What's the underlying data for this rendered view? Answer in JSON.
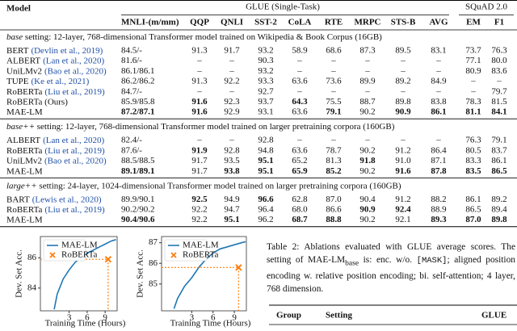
{
  "table": {
    "header_model": "Model",
    "group_glue": "GLUE (Single-Task)",
    "group_squad": "SQuAD 2.0",
    "columns": [
      "MNLI-(m/mm)",
      "QQP",
      "QNLI",
      "SST-2",
      "CoLA",
      "RTE",
      "MRPC",
      "STS-B",
      "AVG",
      "EM",
      "F1"
    ],
    "sections": [
      {
        "setting": "base",
        "description": " setting: 12-layer, 768-dimensional Transformer model trained on Wikipedia & Book Corpus (16GB)",
        "rows": [
          {
            "model": "BERT",
            "citation": "(Devlin et al., 2019)",
            "values": [
              "84.5/-",
              "91.3",
              "91.7",
              "93.2",
              "58.9",
              "68.6",
              "87.3",
              "89.5",
              "83.1",
              "73.7",
              "76.3"
            ],
            "bold": []
          },
          {
            "model": "ALBERT",
            "citation": "(Lan et al., 2020)",
            "values": [
              "81.6/-",
              "–",
              "–",
              "90.3",
              "–",
              "–",
              "–",
              "–",
              "–",
              "77.1",
              "80.0"
            ],
            "bold": []
          },
          {
            "model": "UniLMv2",
            "citation": "(Bao et al., 2020)",
            "values": [
              "86.1/86.1",
              "–",
              "–",
              "93.2",
              "–",
              "–",
              "–",
              "–",
              "–",
              "80.9",
              "83.6"
            ],
            "bold": []
          },
          {
            "model": "TUPE",
            "citation": "(Ke et al., 2021)",
            "values": [
              "86.2/86.2",
              "91.3",
              "92.2",
              "93.3",
              "63.6",
              "73.6",
              "89.9",
              "89.2",
              "84.9",
              "–",
              "–"
            ],
            "bold": []
          },
          {
            "model": "RoBERTa",
            "citation": "(Liu et al., 2019)",
            "values": [
              "84.7/-",
              "–",
              "–",
              "92.7",
              "–",
              "–",
              "–",
              "–",
              "–",
              "–",
              "79.7"
            ],
            "bold": []
          },
          {
            "model": "RoBERTa (Ours)",
            "values": [
              "85.9/85.8",
              "91.6",
              "92.3",
              "93.7",
              "64.3",
              "75.5",
              "88.7",
              "89.8",
              "83.8",
              "78.3",
              "81.5"
            ],
            "bold": [
              1,
              4
            ]
          },
          {
            "model": "MAE-LM",
            "values": [
              "87.2/87.1",
              "91.6",
              "92.9",
              "93.1",
              "63.6",
              "79.1",
              "90.2",
              "90.9",
              "86.1",
              "81.1",
              "84.1"
            ],
            "bold": [
              0,
              1,
              5,
              7,
              8,
              9,
              10
            ]
          }
        ]
      },
      {
        "setting": "base++",
        "description": " setting: 12-layer, 768-dimensional Transformer model trained on larger pretraining corpora (160GB)",
        "rows": [
          {
            "model": "ALBERT",
            "citation": "(Lan et al., 2020)",
            "values": [
              "82.4/-",
              "–",
              "–",
              "92.8",
              "–",
              "–",
              "–",
              "–",
              "–",
              "76.3",
              "79.1"
            ],
            "bold": []
          },
          {
            "model": "RoBERTa",
            "citation": "(Liu et al., 2019)",
            "values": [
              "87.6/-",
              "91.9",
              "92.8",
              "94.8",
              "63.6",
              "78.7",
              "90.2",
              "91.2",
              "86.4",
              "80.5",
              "83.7"
            ],
            "bold": [
              1
            ]
          },
          {
            "model": "UniLMv2",
            "citation": "(Bao et al., 2020)",
            "values": [
              "88.5/88.5",
              "91.7",
              "93.5",
              "95.1",
              "65.2",
              "81.3",
              "91.8",
              "91.0",
              "87.1",
              "83.3",
              "86.1"
            ],
            "bold": [
              3,
              6
            ]
          },
          {
            "model": "MAE-LM",
            "values": [
              "89.1/89.1",
              "91.7",
              "93.8",
              "95.1",
              "65.9",
              "85.2",
              "90.2",
              "91.6",
              "87.8",
              "83.5",
              "86.5"
            ],
            "bold": [
              0,
              2,
              3,
              4,
              5,
              7,
              8,
              9,
              10
            ]
          }
        ]
      },
      {
        "setting": "large++",
        "description": " setting: 24-layer, 1024-dimensional Transformer model trained on larger pretraining corpora (160GB)",
        "rows": [
          {
            "model": "BART",
            "citation": "(Lewis et al., 2020)",
            "values": [
              "89.9/90.1",
              "92.5",
              "94.9",
              "96.6",
              "62.8",
              "87.0",
              "90.4",
              "91.2",
              "88.2",
              "86.1",
              "89.2"
            ],
            "bold": [
              1,
              3
            ]
          },
          {
            "model": "RoBERTa",
            "citation": "(Liu et al., 2019)",
            "values": [
              "90.2/90.2",
              "92.2",
              "94.7",
              "96.4",
              "68.0",
              "86.6",
              "90.9",
              "92.4",
              "88.9",
              "86.5",
              "89.4"
            ],
            "bold": [
              6,
              7
            ]
          },
          {
            "model": "MAE-LM",
            "values": [
              "90.4/90.6",
              "92.2",
              "95.1",
              "96.2",
              "68.7",
              "88.8",
              "90.2",
              "92.1",
              "89.3",
              "87.0",
              "89.8"
            ],
            "bold": [
              0,
              2,
              4,
              5,
              8,
              9,
              10
            ]
          }
        ]
      }
    ]
  },
  "chart_data": [
    {
      "type": "line",
      "xlabel": "Training Time (Hours)",
      "ylabel": "Dev. Set Acc.",
      "xlim": [
        -1.8,
        11
      ],
      "ylim": [
        82.5,
        87.4
      ],
      "xticks": [
        3,
        6,
        9
      ],
      "yticks": [
        84,
        86
      ],
      "legend": "upper left",
      "series": [
        {
          "name": "MAE-LM",
          "color": "#1f77b4",
          "x": [
            0.5,
            1,
            2,
            3,
            4,
            5,
            6,
            7,
            8,
            9,
            10,
            10.8
          ],
          "values": [
            82.6,
            83.6,
            84.6,
            85.2,
            85.7,
            86.0,
            86.3,
            86.5,
            86.7,
            86.9,
            87.1,
            87.2
          ]
        },
        {
          "name": "RoBERTa",
          "color": "#ff7f0e",
          "marker": "x",
          "x": [
            9.5
          ],
          "values": [
            85.9
          ]
        }
      ]
    },
    {
      "type": "line",
      "xlabel": "Training Time (Hours)",
      "ylabel": "Dev. Set Acc.",
      "xlim": [
        -1.25,
        10.7
      ],
      "ylim": [
        83.7,
        87.3
      ],
      "xticks": [
        3,
        6,
        9
      ],
      "yticks": [
        85,
        86,
        87
      ],
      "legend": "upper left",
      "series": [
        {
          "name": "MAE-LM",
          "color": "#1f77b4",
          "x": [
            0.5,
            1,
            2,
            3,
            4,
            5,
            6,
            7,
            8,
            9,
            10,
            10.6
          ],
          "values": [
            83.8,
            84.3,
            84.9,
            85.3,
            85.8,
            86.2,
            86.5,
            86.7,
            86.8,
            86.9,
            87.0,
            87.05
          ]
        },
        {
          "name": "RoBERTa",
          "color": "#ff7f0e",
          "marker": "x",
          "x": [
            9.6
          ],
          "values": [
            85.8
          ]
        }
      ]
    }
  ],
  "caption": {
    "text1": "Table 2: Ablations evaluated with GLUE average scores. The setting of MAE-LM",
    "sub": "base",
    "text2": " is: enc. w/o. ",
    "mono": "[MASK]",
    "text3": "; aligned position encoding w. relative position encoding; bi. self-attention; 4 layer, 768 dimension."
  },
  "ablation_table": {
    "columns": [
      "Group",
      "Setting",
      "GLUE"
    ]
  }
}
